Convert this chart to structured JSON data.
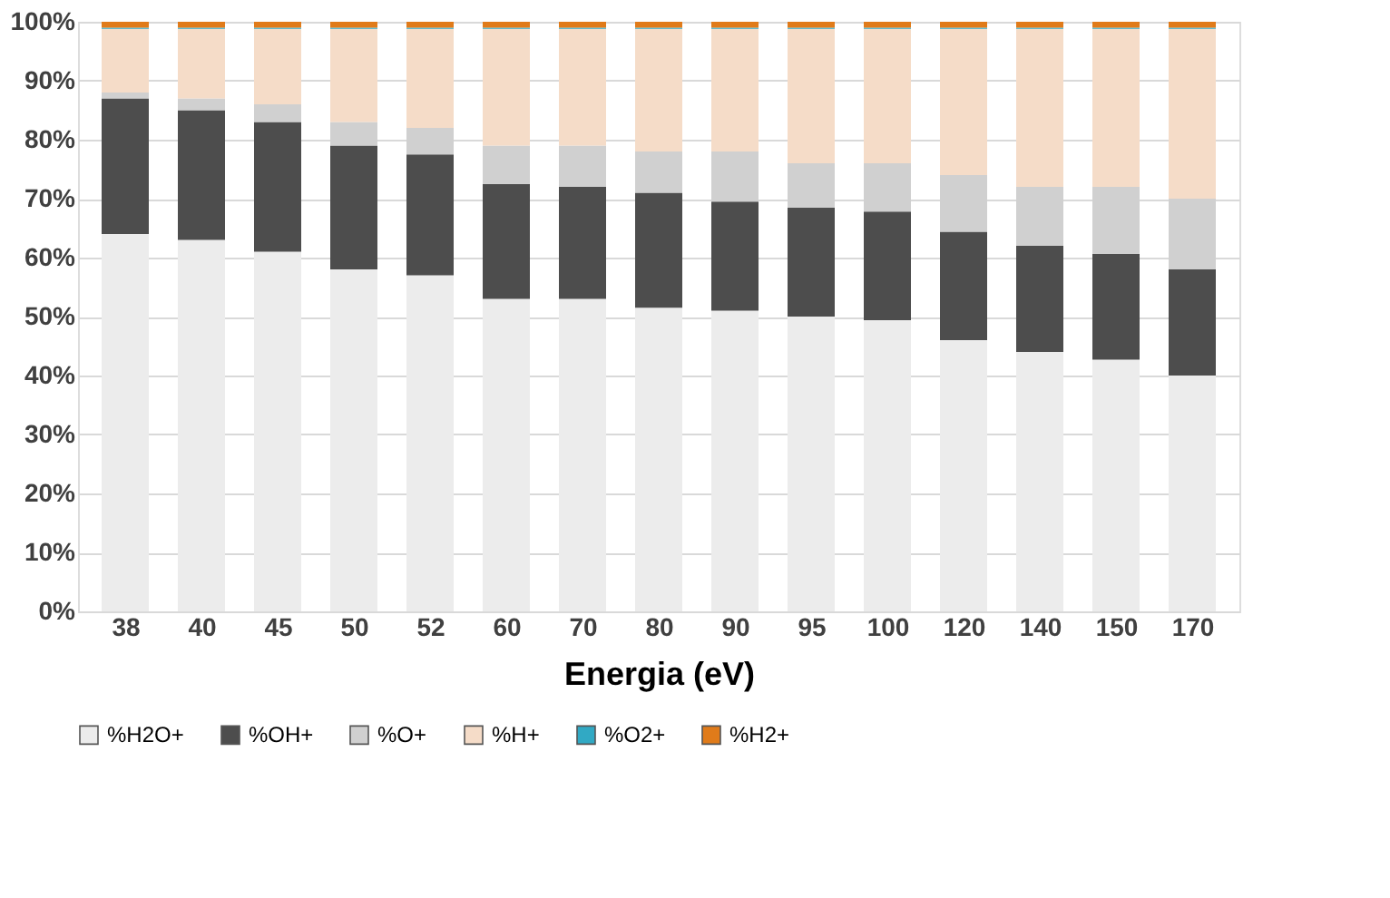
{
  "chart_data": {
    "type": "bar",
    "stacked": true,
    "xlabel": "Energia (eV)",
    "categories": [
      "38",
      "40",
      "45",
      "50",
      "52",
      "60",
      "70",
      "80",
      "90",
      "95",
      "100",
      "120",
      "140",
      "150",
      "170"
    ],
    "series": [
      {
        "name": "%H2O+",
        "color": "#ececec",
        "values": [
          64,
          63,
          61,
          58,
          57,
          53,
          53,
          51.5,
          51,
          50,
          49.4,
          46,
          44,
          42.7,
          40
        ]
      },
      {
        "name": "%OH+",
        "color": "#4d4d4d",
        "values": [
          23,
          22,
          22,
          21,
          20.5,
          19.5,
          19,
          19.5,
          18.5,
          18.5,
          18.4,
          18.4,
          18,
          17.9,
          18
        ]
      },
      {
        "name": "%O+",
        "color": "#d0d0d0",
        "values": [
          1,
          2,
          3,
          4,
          4.5,
          6.5,
          7,
          7,
          8.5,
          7.5,
          8.2,
          9.6,
          10,
          11.4,
          12
        ]
      },
      {
        "name": "%H+",
        "color": "#f5dcc8",
        "values": [
          10.8,
          11.8,
          12.8,
          15.8,
          16.8,
          19.8,
          19.8,
          20.8,
          20.8,
          22.8,
          22.8,
          24.8,
          26.8,
          26.8,
          28.8
        ]
      },
      {
        "name": "%O2+",
        "color": "#31a9c4",
        "values": [
          0.2,
          0.2,
          0.2,
          0.2,
          0.2,
          0.2,
          0.2,
          0.2,
          0.2,
          0.2,
          0.2,
          0.2,
          0.2,
          0.2,
          0.2
        ]
      },
      {
        "name": "%H2+",
        "color": "#e07b1a",
        "values": [
          1,
          1,
          1,
          1,
          1,
          1,
          1,
          1,
          1,
          1,
          1,
          1,
          1,
          1,
          1
        ]
      }
    ],
    "ylim": [
      0,
      100
    ],
    "yticks": [
      {
        "value": 0,
        "label": "0%"
      },
      {
        "value": 10,
        "label": "10%"
      },
      {
        "value": 20,
        "label": "20%"
      },
      {
        "value": 30,
        "label": "30%"
      },
      {
        "value": 40,
        "label": "40%"
      },
      {
        "value": 50,
        "label": "50%"
      },
      {
        "value": 60,
        "label": "60%"
      },
      {
        "value": 70,
        "label": "70%"
      },
      {
        "value": 80,
        "label": "80%"
      },
      {
        "value": 90,
        "label": "90%"
      },
      {
        "value": 100,
        "label": "100%"
      }
    ],
    "grid": "y",
    "legend": "bottom"
  }
}
